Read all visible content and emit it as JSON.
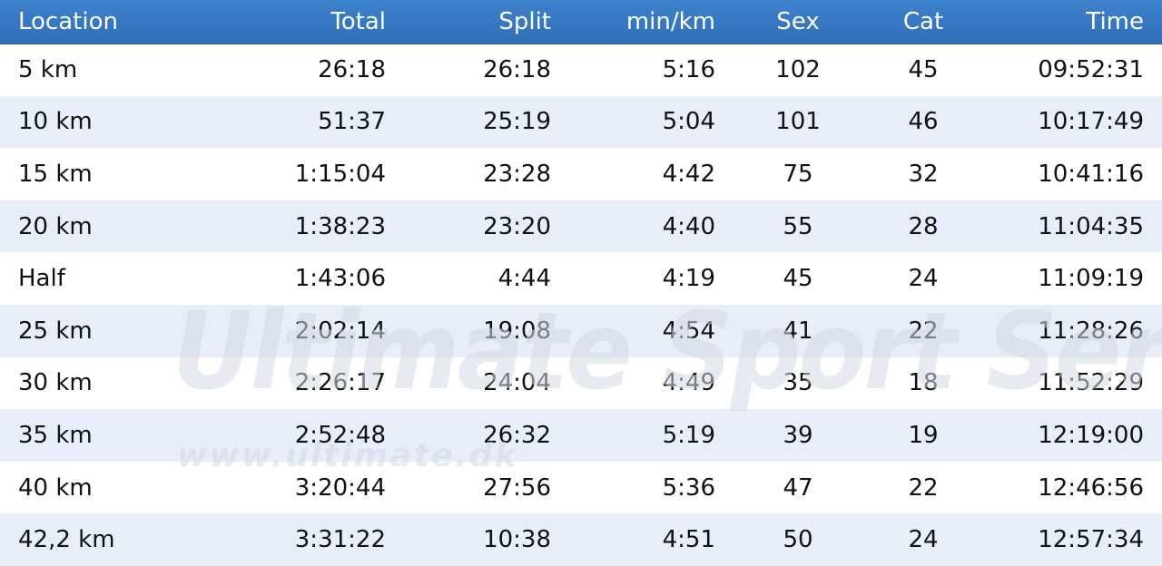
{
  "table": {
    "columns": [
      "Location",
      "Total",
      "Split",
      "min/km",
      "Sex",
      "Cat",
      "Time"
    ],
    "rows": [
      [
        "5 km",
        "26:18",
        "26:18",
        "5:16",
        "102",
        "45",
        "09:52:31"
      ],
      [
        "10 km",
        "51:37",
        "25:19",
        "5:04",
        "101",
        "46",
        "10:17:49"
      ],
      [
        "15 km",
        "1:15:04",
        "23:28",
        "4:42",
        "75",
        "32",
        "10:41:16"
      ],
      [
        "20 km",
        "1:38:23",
        "23:20",
        "4:40",
        "55",
        "28",
        "11:04:35"
      ],
      [
        "Half",
        "1:43:06",
        "4:44",
        "4:19",
        "45",
        "24",
        "11:09:19"
      ],
      [
        "25 km",
        "2:02:14",
        "19:08",
        "4:54",
        "41",
        "22",
        "11:28:26"
      ],
      [
        "30 km",
        "2:26:17",
        "24:04",
        "4:49",
        "35",
        "18",
        "11:52:29"
      ],
      [
        "35 km",
        "2:52:48",
        "26:32",
        "5:19",
        "39",
        "19",
        "12:19:00"
      ],
      [
        "40 km",
        "3:20:44",
        "27:56",
        "5:36",
        "47",
        "22",
        "12:46:56"
      ],
      [
        "42,2 km",
        "3:31:22",
        "10:38",
        "4:51",
        "50",
        "24",
        "12:57:34"
      ]
    ]
  },
  "watermark": {
    "brand": "Ultimate Sport Service",
    "url": "www.ultimate.dk"
  },
  "colors": {
    "header_bg": "#3276c3",
    "row_alt_bg": "#e7eef9",
    "text": "#111111"
  }
}
